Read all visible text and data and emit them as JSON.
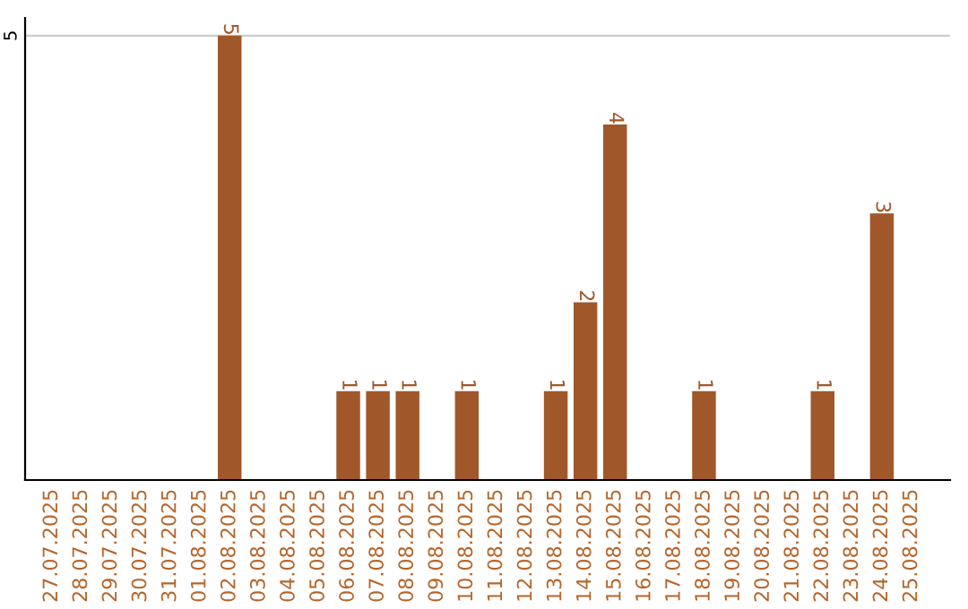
{
  "chart_data": {
    "type": "bar",
    "categories": [
      "27.07.2025",
      "28.07.2025",
      "29.07.2025",
      "30.07.2025",
      "31.07.2025",
      "01.08.2025",
      "02.08.2025",
      "03.08.2025",
      "04.08.2025",
      "05.08.2025",
      "06.08.2025",
      "07.08.2025",
      "08.08.2025",
      "09.08.2025",
      "10.08.2025",
      "11.08.2025",
      "12.08.2025",
      "13.08.2025",
      "14.08.2025",
      "15.08.2025",
      "16.08.2025",
      "17.08.2025",
      "18.08.2025",
      "19.08.2025",
      "20.08.2025",
      "21.08.2025",
      "22.08.2025",
      "23.08.2025",
      "24.08.2025",
      "25.08.2025"
    ],
    "values": [
      0,
      0,
      0,
      0,
      0,
      0,
      5,
      0,
      0,
      0,
      1,
      1,
      1,
      0,
      1,
      0,
      0,
      1,
      2,
      4,
      0,
      0,
      1,
      0,
      0,
      0,
      1,
      0,
      3,
      0
    ],
    "value_labels": [
      null,
      null,
      null,
      null,
      null,
      null,
      "5",
      null,
      null,
      null,
      "1",
      "1",
      "1",
      null,
      "1",
      null,
      null,
      "1",
      "2",
      "4",
      null,
      null,
      "1",
      null,
      null,
      null,
      "1",
      null,
      "3",
      null
    ],
    "color": "#a0582a",
    "ylim": [
      0,
      5.2
    ],
    "yticks": [
      5
    ],
    "grid": "y",
    "legend": false
  }
}
